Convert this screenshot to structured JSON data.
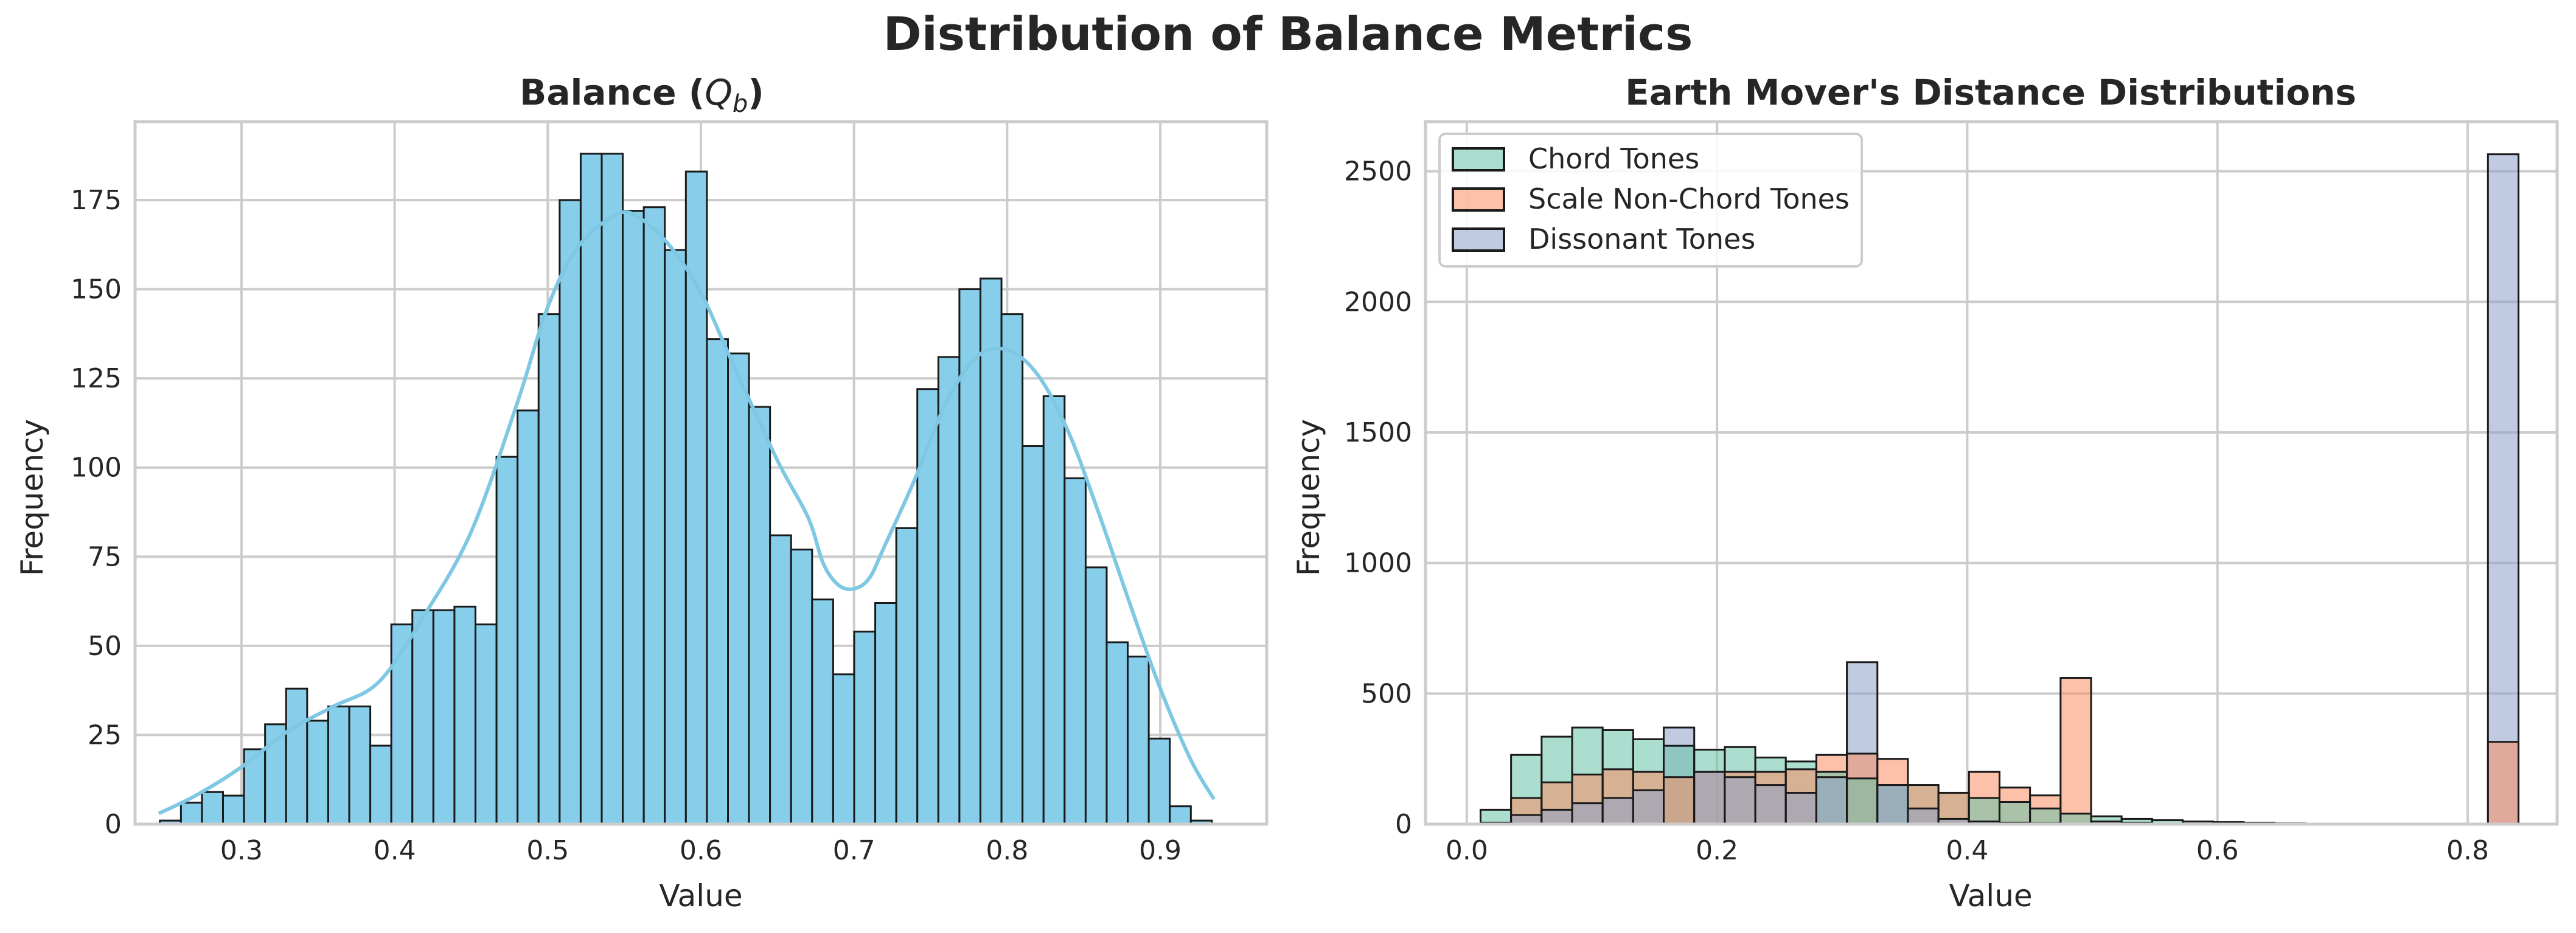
{
  "figure": {
    "suptitle": "Distribution of Balance Metrics"
  },
  "chart_data": [
    {
      "type": "bar",
      "subtype": "histogram",
      "title_prefix": "Balance (",
      "title_symbol": "Q",
      "title_subscript": "b",
      "title_suffix": ")",
      "xlabel": "Value",
      "ylabel": "Frequency",
      "xlim": [
        0.2305,
        0.9695
      ],
      "ylim": [
        0,
        197
      ],
      "xticks": [
        0.3,
        0.4,
        0.5,
        0.6,
        0.7,
        0.8,
        0.9
      ],
      "yticks": [
        0,
        25,
        50,
        75,
        100,
        125,
        150,
        175
      ],
      "grid": true,
      "color": "#87CEEB",
      "edge_color": "#1a1a1a",
      "kde_color": "#7EC8E3",
      "bin_start": 0.2467,
      "bin_width": 0.01374,
      "values": [
        1,
        6,
        9,
        8,
        21,
        28,
        38,
        29,
        33,
        33,
        22,
        56,
        60,
        60,
        61,
        56,
        103,
        116,
        143,
        175,
        188,
        188,
        172,
        173,
        161,
        183,
        136,
        132,
        117,
        81,
        77,
        63,
        42,
        54,
        62,
        83,
        122,
        131,
        150,
        153,
        143,
        106,
        120,
        97,
        72,
        51,
        47,
        24,
        5,
        1
      ],
      "kde": {
        "x": [
          0.246,
          0.27,
          0.3,
          0.33,
          0.36,
          0.39,
          0.42,
          0.45,
          0.48,
          0.5,
          0.52,
          0.545,
          0.56,
          0.58,
          0.6,
          0.62,
          0.65,
          0.67,
          0.68,
          0.69,
          0.7,
          0.71,
          0.72,
          0.74,
          0.76,
          0.78,
          0.8,
          0.82,
          0.84,
          0.86,
          0.88,
          0.9,
          0.92,
          0.935
        ],
        "y": [
          3,
          8,
          16,
          26,
          33,
          40,
          59,
          82,
          118,
          145,
          162,
          171,
          170,
          162,
          149,
          130,
          102,
          86,
          73,
          67,
          66,
          69,
          78,
          97,
          118,
          131,
          133,
          126,
          110,
          87,
          62,
          38,
          18,
          7
        ]
      }
    },
    {
      "type": "bar",
      "subtype": "overlaid histogram",
      "title": "Earth Mover's Distance Distributions",
      "xlabel": "Value",
      "ylabel": "Frequency",
      "xlim": [
        -0.033,
        0.8715
      ],
      "ylim": [
        0,
        2690
      ],
      "xticks": [
        0.0,
        0.2,
        0.4,
        0.6,
        0.8
      ],
      "yticks": [
        0,
        500,
        1000,
        1500,
        2000,
        2500
      ],
      "grid": true,
      "legend_position": "top-left",
      "bin_start": 0.011,
      "bin_width": 0.0244,
      "series": [
        {
          "name": "Chord Tones",
          "color": "#66C2A5",
          "values": [
            55,
            265,
            335,
            370,
            360,
            325,
            300,
            285,
            295,
            255,
            240,
            200,
            175,
            150,
            150,
            120,
            100,
            85,
            60,
            40,
            30,
            20,
            15,
            10,
            8,
            5,
            3,
            2,
            2,
            2,
            1,
            1,
            1,
            0
          ]
        },
        {
          "name": "Scale Non-Chord Tones",
          "color": "#FC8D62",
          "values": [
            5,
            100,
            160,
            190,
            210,
            200,
            180,
            200,
            200,
            200,
            210,
            265,
            270,
            250,
            150,
            120,
            200,
            140,
            110,
            560,
            10,
            5,
            2,
            1,
            0,
            0,
            0,
            0,
            0,
            0,
            0,
            0,
            0,
            315
          ]
        },
        {
          "name": "Dissonant Tones",
          "color": "#8DA0CB",
          "values": [
            5,
            35,
            55,
            80,
            100,
            130,
            370,
            200,
            180,
            150,
            120,
            180,
            620,
            150,
            60,
            20,
            10,
            5,
            3,
            2,
            1,
            0,
            0,
            0,
            0,
            0,
            0,
            0,
            0,
            0,
            0,
            0,
            0,
            2565
          ]
        }
      ]
    }
  ]
}
